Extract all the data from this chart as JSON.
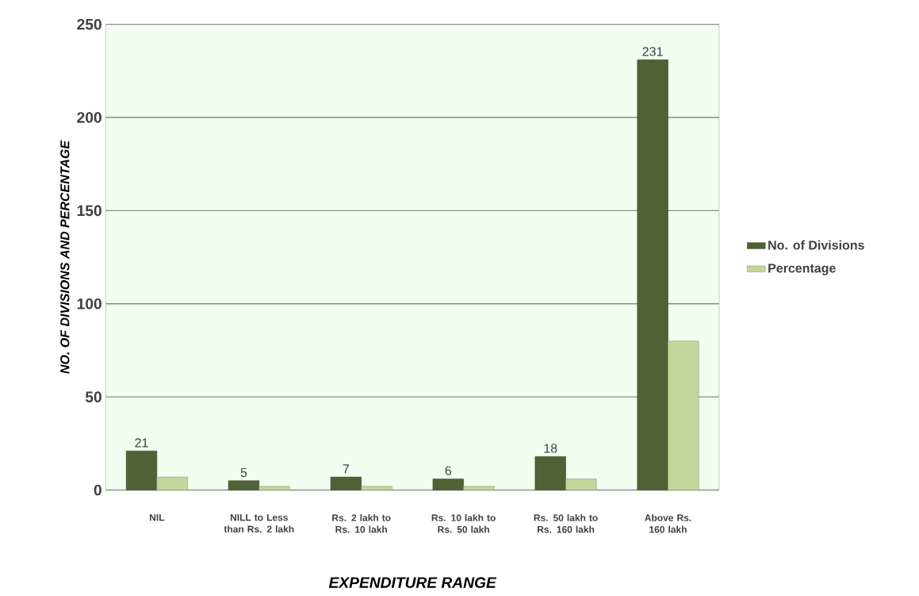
{
  "chart_data": {
    "type": "bar",
    "xlabel": "EXPENDITURE RANGE",
    "ylabel": "NO. OF DIVISIONS AND PERCENTAGE",
    "categories": [
      "NIL",
      "NILL to Less than Rs. 2 lakh",
      "Rs. 2 lakh to Rs. 10 lakh",
      "Rs. 10 lakh to Rs. 50 lakh",
      "Rs. 50 lakh to Rs. 160 lakh",
      "Above Rs. 160 lakh"
    ],
    "series": [
      {
        "name": "No. of Divisions",
        "color": "#4f6236",
        "values": [
          21,
          5,
          7,
          6,
          18,
          231
        ],
        "value_labels": [
          "21",
          "5",
          "7",
          "6",
          "18",
          "231"
        ]
      },
      {
        "name": "Percentage",
        "color": "#c3d69b",
        "values": [
          7,
          2,
          2,
          2,
          6,
          80
        ]
      }
    ],
    "ylim": [
      0,
      250
    ],
    "yticks": [
      0,
      50,
      100,
      150,
      200,
      250
    ],
    "grid": "y",
    "legend": "right"
  }
}
